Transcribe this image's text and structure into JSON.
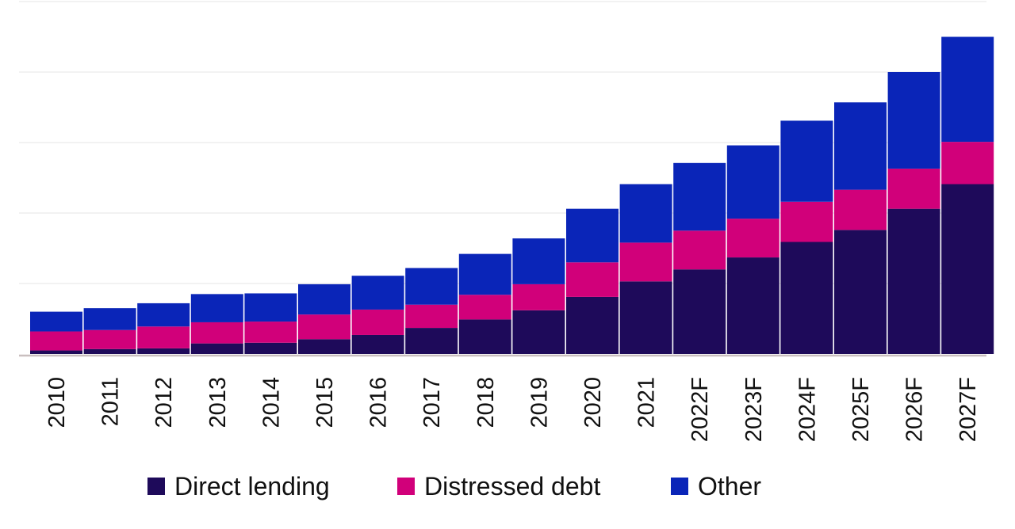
{
  "chart_data": {
    "type": "bar",
    "stacked": true,
    "categories": [
      "2010",
      "2011",
      "2012",
      "2013",
      "2014",
      "2015",
      "2016",
      "2017",
      "2018",
      "2019",
      "2020",
      "2021",
      "2022F",
      "2023F",
      "2024F",
      "2025F",
      "2026F",
      "2027F"
    ],
    "series": [
      {
        "name": "Direct lending",
        "color": "#1e0a5a",
        "values": [
          5,
          7,
          8,
          15,
          16,
          21,
          27,
          37,
          49,
          62,
          81,
          103,
          120,
          137,
          159,
          176,
          206,
          241
        ]
      },
      {
        "name": "Distressed debt",
        "color": "#d1007a",
        "values": [
          27,
          27,
          31,
          30,
          30,
          35,
          36,
          33,
          35,
          37,
          49,
          55,
          55,
          55,
          57,
          57,
          57,
          60
        ]
      },
      {
        "name": "Other",
        "color": "#0a25b8",
        "values": [
          28,
          31,
          33,
          40,
          40,
          43,
          48,
          52,
          58,
          65,
          76,
          83,
          96,
          104,
          115,
          124,
          137,
          149
        ]
      }
    ],
    "ylim": [
      0,
      500
    ],
    "gridlines": [
      100,
      200,
      300,
      400,
      500
    ],
    "y_tick_labels": false,
    "grid": true,
    "legend": "bottom",
    "title": "",
    "xlabel": "",
    "ylabel": ""
  }
}
